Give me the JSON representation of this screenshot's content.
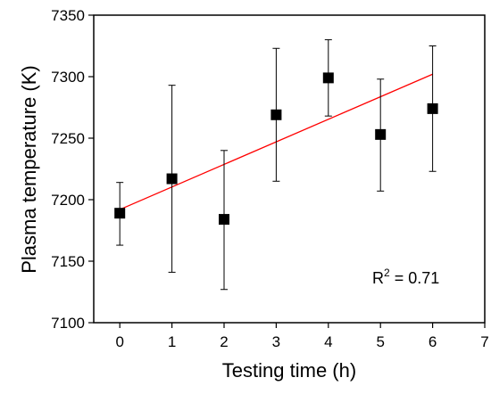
{
  "chart_data": {
    "type": "scatter",
    "xlabel": "Testing time (h)",
    "ylabel": "Plasma temperature (K)",
    "xlim": [
      -0.5,
      7
    ],
    "ylim": [
      7100,
      7350
    ],
    "xticks": [
      0,
      1,
      2,
      3,
      4,
      5,
      6,
      7
    ],
    "yticks": [
      7100,
      7150,
      7200,
      7250,
      7300,
      7350
    ],
    "grid": false,
    "legend": "none",
    "series": [
      {
        "marker": "square",
        "color": "#000000",
        "x": [
          0,
          1,
          2,
          3,
          4,
          5,
          6
        ],
        "y": [
          7189,
          7217,
          7184,
          7269,
          7299,
          7253,
          7274
        ],
        "err_low": [
          7163,
          7141,
          7127,
          7215,
          7268,
          7207,
          7223
        ],
        "err_high": [
          7214,
          7293,
          7240,
          7323,
          7330,
          7298,
          7325
        ]
      }
    ],
    "fit_line": {
      "color": "#ff0000",
      "x": [
        0,
        6
      ],
      "y": [
        7192,
        7302
      ]
    },
    "annotation": {
      "text": "R",
      "sup": "2",
      "suffix": " = 0.71"
    }
  }
}
